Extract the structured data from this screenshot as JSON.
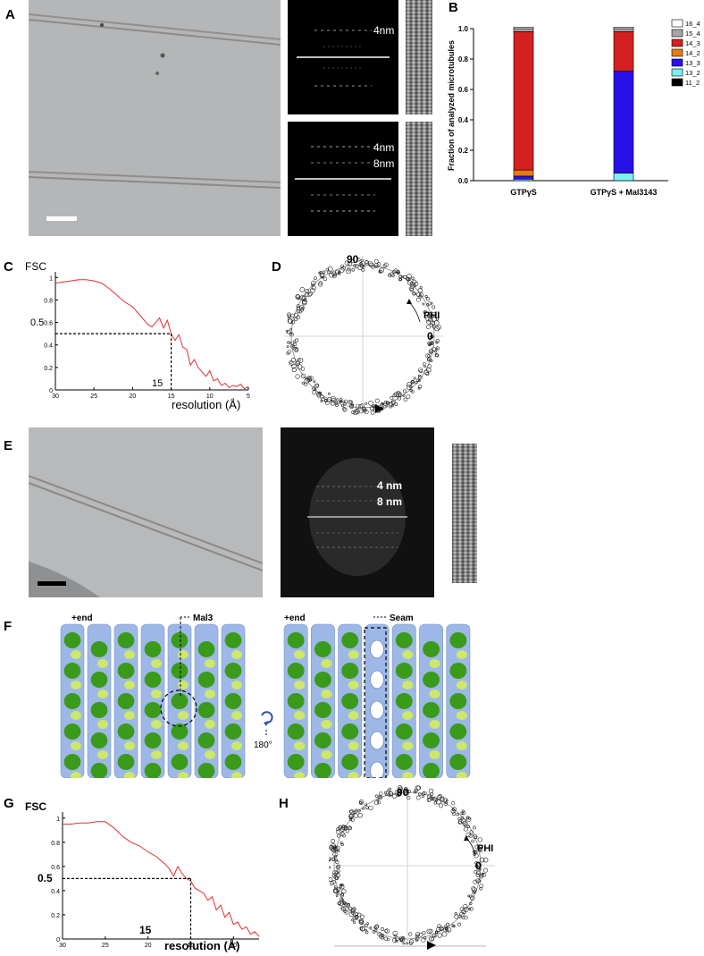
{
  "panels": {
    "a": "A",
    "b": "B",
    "c": "C",
    "d": "D",
    "e": "E",
    "f": "F",
    "g": "G",
    "h": "H"
  },
  "panel_a": {
    "fft_top_label": "4nm",
    "fft_bottom_label_1": "4nm",
    "fft_bottom_label_2": "8nm"
  },
  "panel_c_labels": {
    "ylabel": "FSC",
    "xlabel": "resolution (Å)",
    "threshold_y": "0.5",
    "threshold_x": "15"
  },
  "panel_d": {
    "top": "90",
    "right": "0",
    "phi": "PHI"
  },
  "panel_e": {
    "fft_label_1": "4 nm",
    "fft_label_2": "8 nm"
  },
  "panel_f": {
    "left_end": "+end",
    "mal3": "Mal3",
    "rotation": "180°",
    "right_end": "+end",
    "seam": "Seam"
  },
  "panel_g_labels": {
    "ylabel": "FSC",
    "xlabel": "resolution (Å)",
    "threshold_y": "0.5",
    "threshold_x": "15"
  },
  "panel_h": {
    "top": "90",
    "right": "0",
    "phi": "PHI"
  },
  "colors": {
    "fsc_curve": "#e03030",
    "ptype_16_4": "#ffffff",
    "ptype_15_4": "#a6a6a6",
    "ptype_14_3": "#d42020",
    "ptype_14_2": "#e87a10",
    "ptype_13_3": "#2a10e8",
    "ptype_13_2": "#7af0f0",
    "ptype_11_2": "#000000",
    "tubulin": "#9db8e6",
    "mal3": "#3a9a1a"
  },
  "chart_data": [
    {
      "type": "bar",
      "stacked": true,
      "categories": [
        "GTPγS",
        "GTPγS + Mal3143"
      ],
      "ylabel": "Fraction of analyzed microtubules",
      "ylim": [
        0,
        1.0
      ],
      "yticks": [
        "0.0",
        "0.2",
        "0.4",
        "0.6",
        "0.8",
        "1.0"
      ],
      "series": [
        {
          "name": "11_2",
          "values": [
            0.0,
            0.0
          ]
        },
        {
          "name": "13_2",
          "values": [
            0.01,
            0.05
          ]
        },
        {
          "name": "13_3",
          "values": [
            0.02,
            0.67
          ]
        },
        {
          "name": "14_2",
          "values": [
            0.04,
            0.0
          ]
        },
        {
          "name": "14_3",
          "values": [
            0.91,
            0.26
          ]
        },
        {
          "name": "15_4",
          "values": [
            0.02,
            0.02
          ]
        },
        {
          "name": "16_4",
          "values": [
            0.01,
            0.01
          ]
        }
      ],
      "legend_placement": "top-right"
    },
    {
      "type": "line",
      "ylabel": "FSC",
      "xlabel": "resolution (Å)",
      "xlim": [
        30,
        5
      ],
      "ylim": [
        0,
        1.05
      ],
      "xticks": [
        "30",
        "25",
        "20",
        "15",
        "10",
        "5"
      ],
      "yticks": [
        "0",
        "0.2",
        "0.4",
        "0.5",
        "0.6",
        "0.8",
        "1"
      ],
      "x": [
        30,
        29,
        28,
        27,
        26,
        25,
        24,
        23,
        22,
        21,
        20,
        19,
        18.5,
        18,
        17.5,
        17,
        16.5,
        16,
        15.5,
        15,
        14.5,
        14,
        13.5,
        13,
        12.5,
        12,
        11.5,
        11,
        10.5,
        10,
        9.5,
        9,
        8.5,
        8,
        7.5,
        7,
        6.5,
        6,
        5.5,
        5
      ],
      "y": [
        0.95,
        0.96,
        0.97,
        0.98,
        0.98,
        0.97,
        0.95,
        0.9,
        0.84,
        0.78,
        0.74,
        0.66,
        0.62,
        0.58,
        0.56,
        0.6,
        0.64,
        0.55,
        0.62,
        0.5,
        0.44,
        0.49,
        0.38,
        0.36,
        0.22,
        0.27,
        0.2,
        0.16,
        0.12,
        0.17,
        0.08,
        0.1,
        0.04,
        0.06,
        0.02,
        0.04,
        0.03,
        0.05,
        0.01,
        0.03
      ]
    },
    {
      "type": "line",
      "ylabel": "FSC",
      "xlabel": "resolution (Å)",
      "xlim": [
        30,
        7
      ],
      "ylim": [
        0,
        1.05
      ],
      "xticks": [
        "30",
        "25",
        "20",
        "15",
        "10"
      ],
      "yticks": [
        "0",
        "0.2",
        "0.4",
        "0.5",
        "0.6",
        "0.8",
        "1"
      ],
      "x": [
        30,
        29,
        28,
        27,
        26,
        25,
        24,
        23,
        22,
        21,
        20,
        19,
        18,
        17.5,
        17,
        16.5,
        16,
        15.5,
        15,
        14.5,
        14,
        13.5,
        13,
        12.5,
        12,
        11.5,
        11,
        10.5,
        10,
        9.5,
        9,
        8.5,
        8,
        7.5,
        7
      ],
      "y": [
        0.95,
        0.95,
        0.96,
        0.96,
        0.97,
        0.97,
        0.92,
        0.85,
        0.8,
        0.77,
        0.72,
        0.68,
        0.62,
        0.58,
        0.52,
        0.6,
        0.54,
        0.5,
        0.48,
        0.42,
        0.4,
        0.38,
        0.32,
        0.35,
        0.24,
        0.28,
        0.18,
        0.22,
        0.12,
        0.14,
        0.08,
        0.1,
        0.04,
        0.06,
        0.02
      ]
    }
  ]
}
